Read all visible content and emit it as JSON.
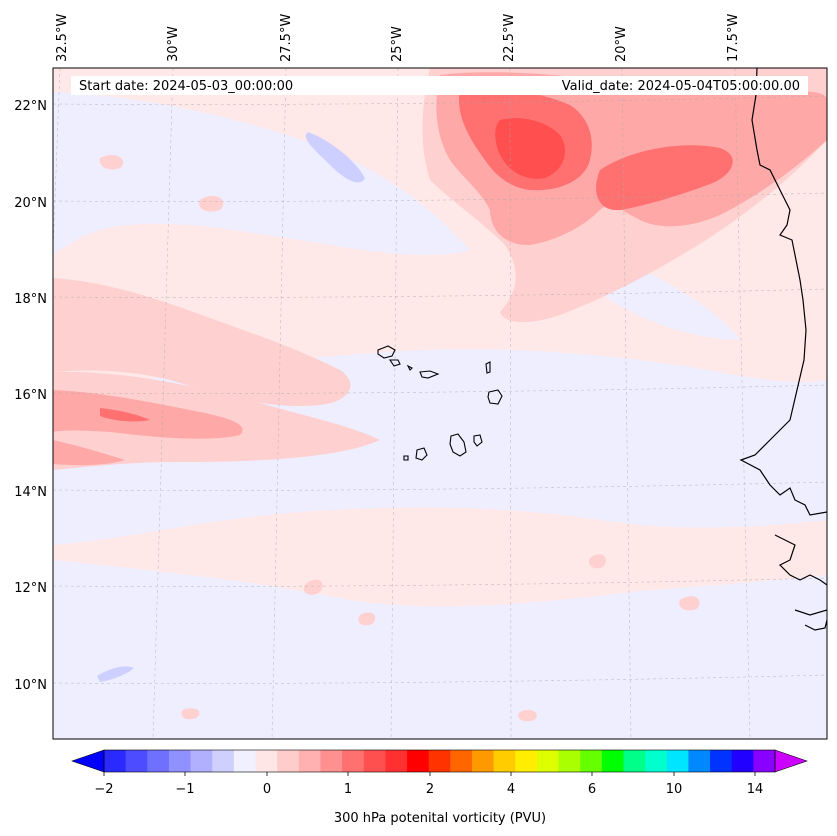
{
  "header": {
    "start_label": "Start date: 2024-05-03_00:00:00",
    "valid_label": "Valid_date: 2024-05-04T05:00:00.00"
  },
  "axes": {
    "lon_labels": [
      "32.5°W",
      "30°W",
      "27.5°W",
      "25°W",
      "22.5°W",
      "20°W",
      "17.5°W"
    ],
    "lat_labels": [
      "22°N",
      "20°N",
      "18°N",
      "16°N",
      "14°N",
      "12°N",
      "10°N"
    ]
  },
  "colorbar": {
    "label": "300 hPa potenital vorticity (PVU)",
    "ticks": [
      "−2",
      "−1",
      "0",
      "1",
      "2",
      "4",
      "6",
      "10",
      "14"
    ],
    "colors": [
      "#0000ff",
      "#2a2aff",
      "#4d4dff",
      "#7070ff",
      "#9090ff",
      "#b0b0ff",
      "#d0d0ff",
      "#f0f0ff",
      "#ffe6e6",
      "#ffcccc",
      "#ffb0b0",
      "#ff9090",
      "#ff7070",
      "#ff5050",
      "#ff3030",
      "#ff0000",
      "#ff3300",
      "#ff6600",
      "#ff9900",
      "#ffcc00",
      "#ffee00",
      "#ddff00",
      "#aaff00",
      "#66ff00",
      "#00ff00",
      "#00ff88",
      "#00ffcc",
      "#00e5ff",
      "#0088ff",
      "#0033ff",
      "#2200ff",
      "#8800ff",
      "#cc00ff"
    ]
  },
  "colors": {
    "background": "#ffe8e8",
    "light_blue": "#eeeeff",
    "pink": "#ffcccc",
    "red_mid": "#ff9999",
    "red_strong": "#ff5a5a",
    "coast": "#000000"
  }
}
